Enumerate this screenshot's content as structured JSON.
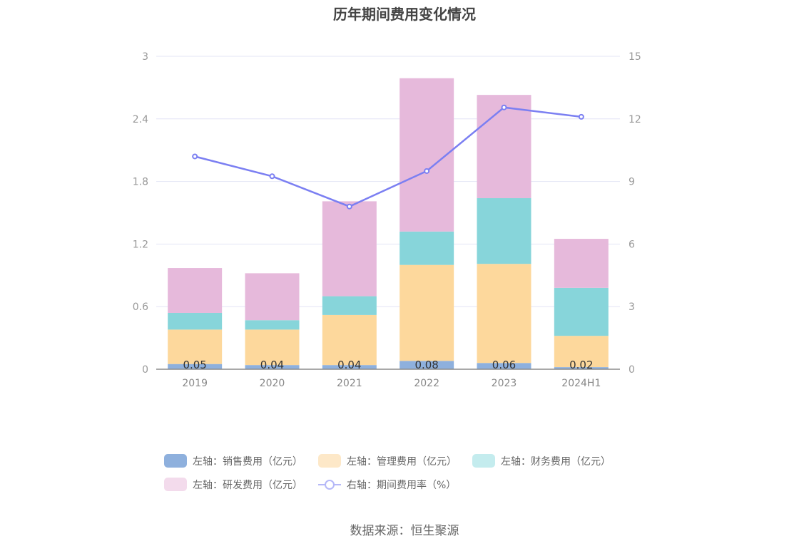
{
  "chart_data": {
    "type": "bar",
    "title": "历年期间费用变化情况",
    "categories": [
      "2019",
      "2020",
      "2021",
      "2022",
      "2023",
      "2024H1"
    ],
    "stacked": true,
    "y_left": {
      "ylim": [
        0,
        3
      ],
      "ticks": [
        "0",
        "0.6",
        "1.2",
        "1.8",
        "2.4",
        "3"
      ]
    },
    "y_right": {
      "ylim": [
        0,
        15
      ],
      "ticks": [
        "0",
        "3",
        "6",
        "9",
        "12",
        "15"
      ]
    },
    "grid": true,
    "legend_position": "bottom",
    "series": [
      {
        "name": "左轴：销售费用（亿元）",
        "axis": "left",
        "color": "#8eb0dd",
        "values": [
          0.05,
          0.04,
          0.04,
          0.08,
          0.06,
          0.02
        ],
        "labels": [
          "0.05",
          "0.04",
          "0.04",
          "0.08",
          "0.06",
          "0.02"
        ]
      },
      {
        "name": "左轴：管理费用（亿元）",
        "axis": "left",
        "color": "#fdd89c",
        "values": [
          0.33,
          0.34,
          0.48,
          0.92,
          0.95,
          0.3
        ]
      },
      {
        "name": "左轴：财务费用（亿元）",
        "axis": "left",
        "color": "#87d5da",
        "values": [
          0.16,
          0.09,
          0.18,
          0.32,
          0.63,
          0.46
        ]
      },
      {
        "name": "左轴：研发费用（亿元）",
        "axis": "left",
        "color": "#e6b9db",
        "values": [
          0.43,
          0.45,
          0.91,
          1.47,
          0.99,
          0.47
        ]
      },
      {
        "name": "右轴：期间费用率（%）",
        "axis": "right",
        "type": "line",
        "color": "#7b7ff2",
        "values": [
          10.2,
          9.25,
          7.8,
          9.5,
          12.55,
          12.1
        ]
      }
    ]
  },
  "legend": {
    "sales": "左轴：销售费用（亿元）",
    "admin": "左轴：管理费用（亿元）",
    "finance": "左轴：财务费用（亿元）",
    "rd": "左轴：研发费用（亿元）",
    "rate": "右轴：期间费用率（%）"
  },
  "source": "数据来源：恒生聚源"
}
